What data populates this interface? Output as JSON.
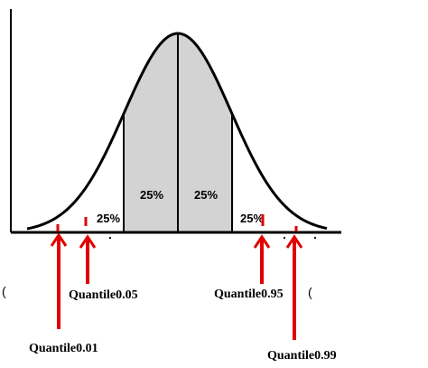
{
  "diagram": {
    "regions": [
      {
        "label": "25%"
      },
      {
        "label": "25%"
      },
      {
        "label": "25%"
      },
      {
        "label": "25%"
      }
    ],
    "quantiles": [
      {
        "label": "Quantile0.01",
        "level": 0.01
      },
      {
        "label": "Quantile0.05",
        "level": 0.05
      },
      {
        "label": "Quantile0.95",
        "level": 0.95
      },
      {
        "label": "Quantile0.99",
        "level": 0.99
      }
    ],
    "stray_marks": [
      "(",
      "("
    ],
    "colors": {
      "curve": "#000000",
      "shaded_region": "#d3d3d3",
      "marker": "#e00000",
      "axis": "#000000"
    }
  }
}
